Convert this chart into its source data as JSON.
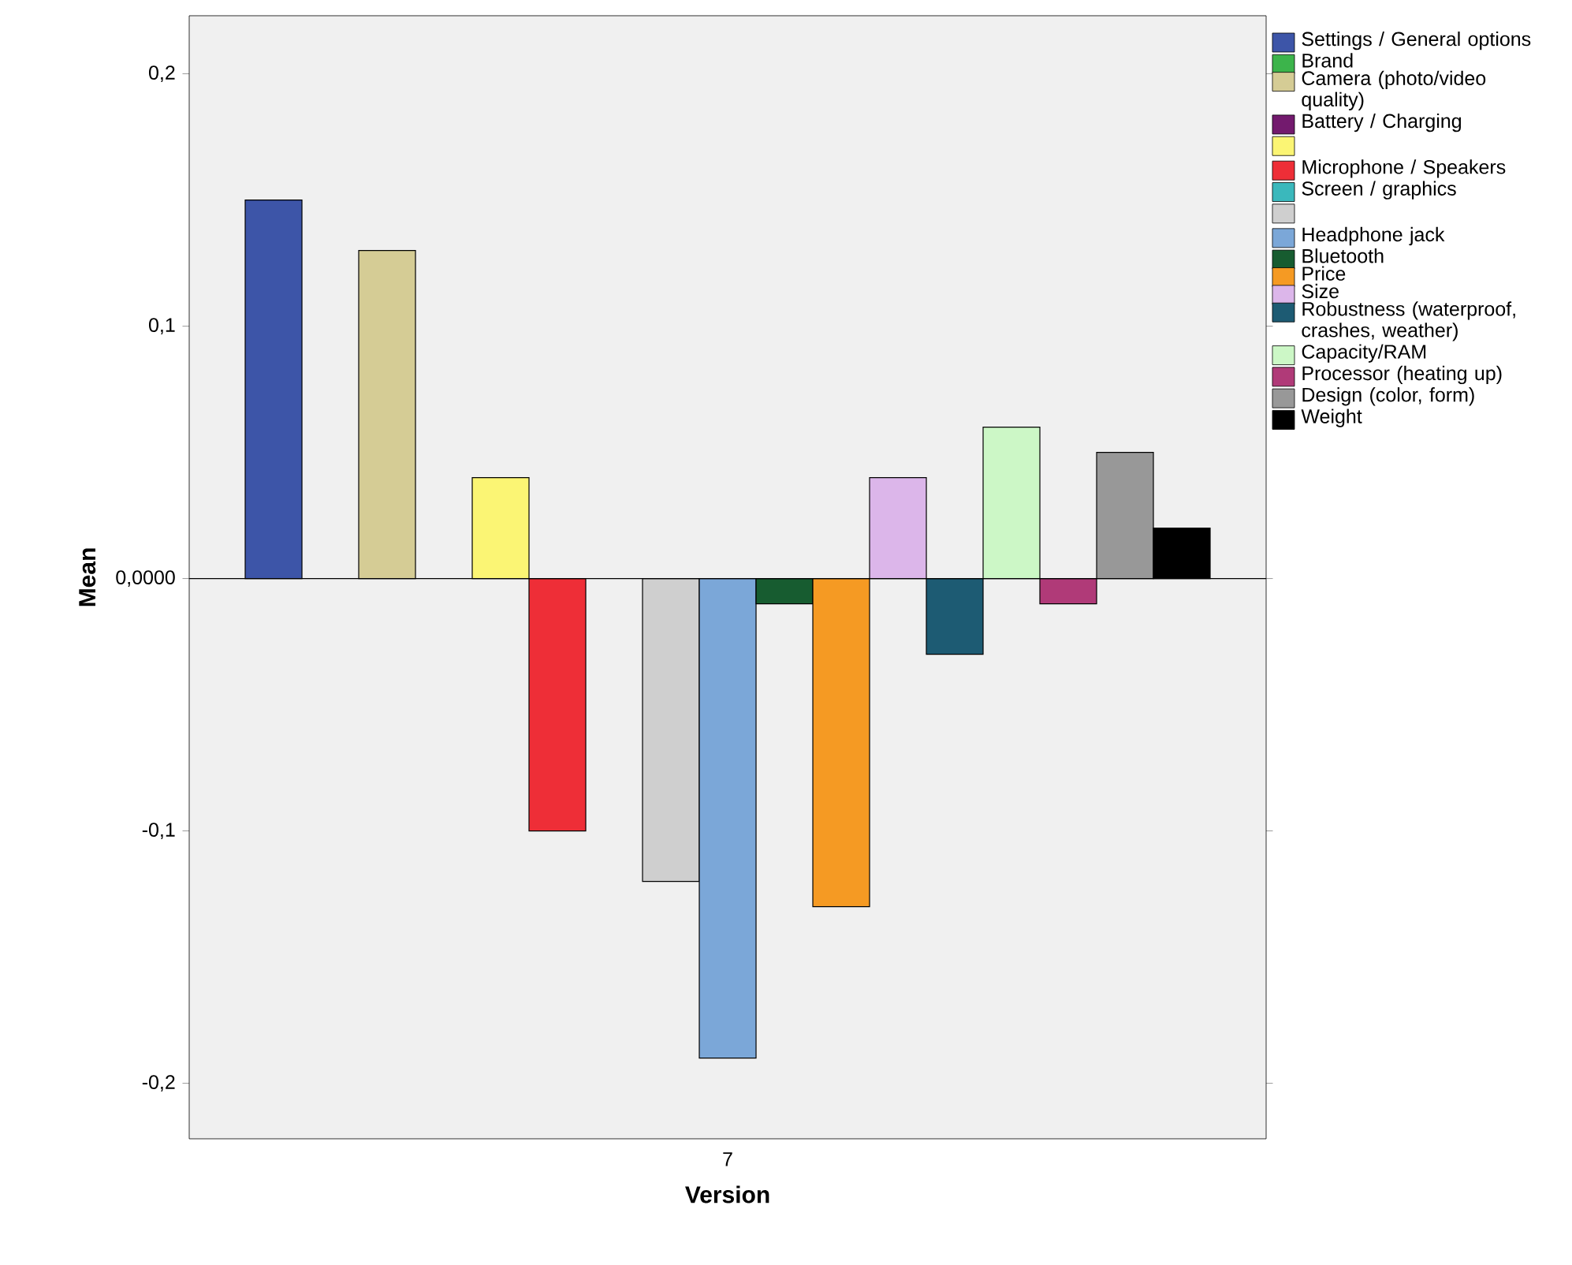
{
  "chart_data": {
    "type": "bar",
    "xlabel": "Version",
    "ylabel": "Mean",
    "categories": [
      "7"
    ],
    "ylim": [
      -0.222,
      0.223
    ],
    "yticks": [
      {
        "value": -0.2,
        "label": "-0,2"
      },
      {
        "value": -0.1,
        "label": "-0,1"
      },
      {
        "value": 0,
        "label": "0,0000"
      },
      {
        "value": 0.1,
        "label": "0,1"
      },
      {
        "value": 0.2,
        "label": "0,2"
      }
    ],
    "grid": false,
    "legend": "right",
    "ref_lines": [
      {
        "axis": "y",
        "value": 0,
        "color": "#000000"
      }
    ],
    "series": [
      {
        "name": "Settings / General options",
        "color": "#3d55a8",
        "values": [
          0.15
        ]
      },
      {
        "name": "Brand",
        "color": "#3cb44b",
        "values": [
          0
        ]
      },
      {
        "name": "Camera (photo/video quality)",
        "color": "#d5cc95",
        "values": [
          0.13
        ]
      },
      {
        "name": "Battery / Charging",
        "color": "#731a6e",
        "values": [
          0
        ]
      },
      {
        "color": "#fbf574",
        "values": [
          0.04
        ]
      },
      {
        "name": "Microphone / Speakers",
        "color": "#ee2e37",
        "values": [
          -0.1
        ]
      },
      {
        "name": "Screen / graphics",
        "color": "#3ab8bc",
        "values": [
          0
        ]
      },
      {
        "color": "#cfcfcf",
        "values": [
          -0.12
        ]
      },
      {
        "name": "Headphone jack",
        "color": "#7ba7d8",
        "values": [
          -0.19
        ]
      },
      {
        "name": "Bluetooth",
        "color": "#175c30",
        "values": [
          -0.01
        ]
      },
      {
        "name": "Price",
        "color": "#f59a23",
        "values": [
          -0.13
        ]
      },
      {
        "name": "Size",
        "color": "#dcb6ea",
        "values": [
          0.04
        ]
      },
      {
        "name": "Robustness (waterproof, crashes, weather)",
        "color": "#1d5b73",
        "values": [
          -0.03
        ]
      },
      {
        "name": "Capacity/RAM",
        "color": "#ccf7c6",
        "values": [
          0.06
        ]
      },
      {
        "name": "Processor (heating up)",
        "color": "#b03a78",
        "values": [
          -0.01
        ]
      },
      {
        "name": "Design (color, form)",
        "color": "#989898",
        "values": [
          0.05
        ]
      },
      {
        "name": "Weight",
        "color": "#000000",
        "values": [
          0.02
        ]
      }
    ]
  }
}
